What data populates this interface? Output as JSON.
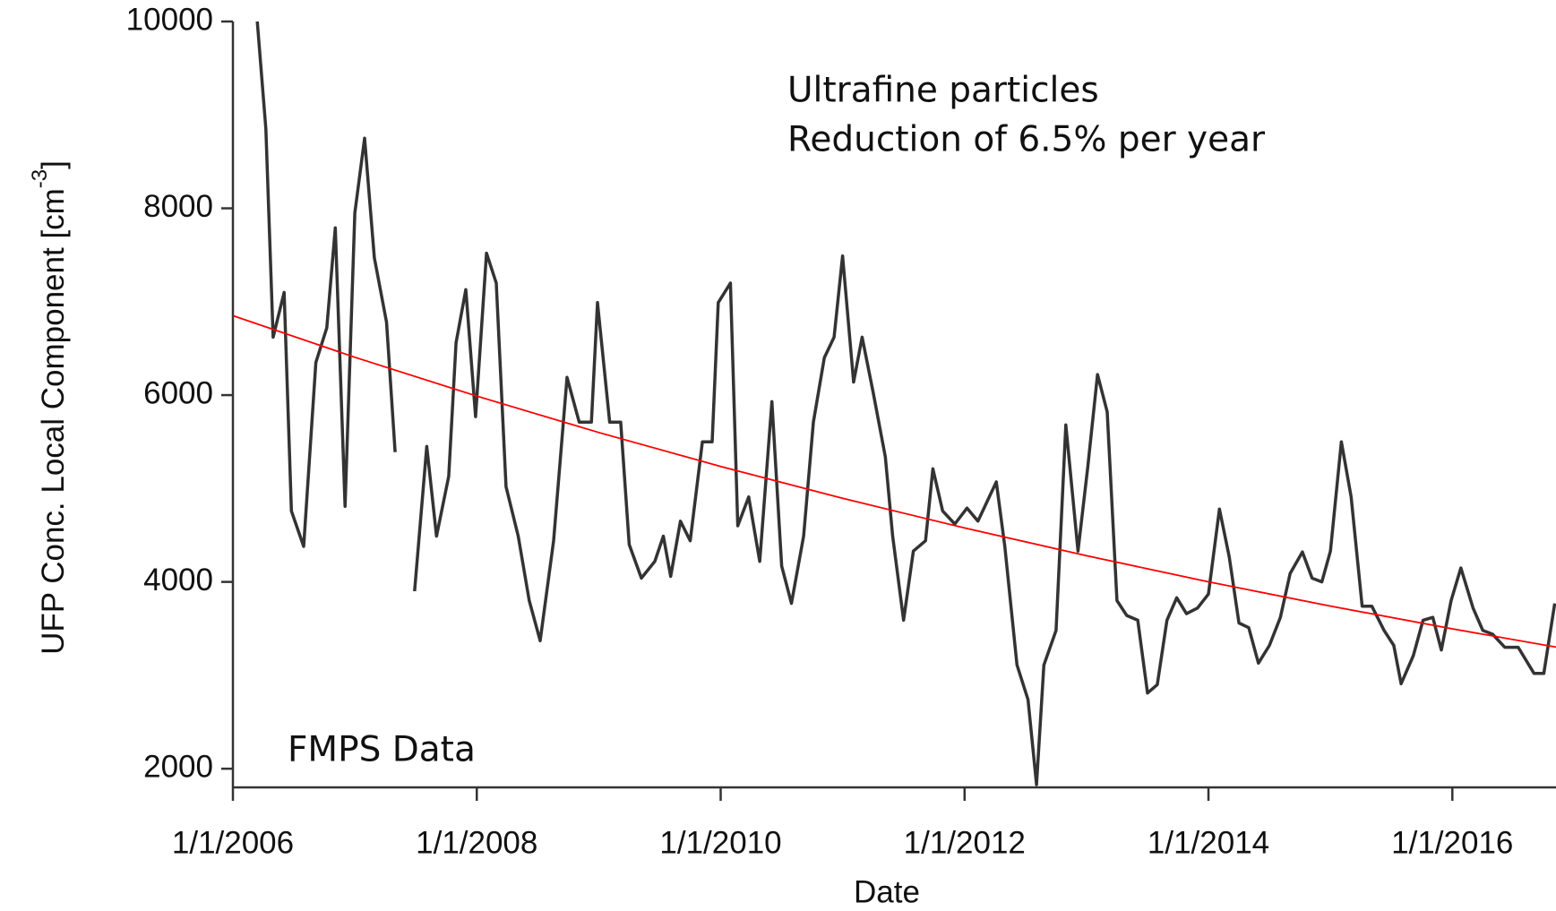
{
  "chart_data": {
    "type": "line",
    "annotations": [
      "Ultrafine particles",
      "Reduction of 6.5% per year",
      "FMPS Data"
    ],
    "x_label": "Date",
    "y_label": "UFP Conc. Local Component [cm",
    "y_label_superscript": "-3",
    "y_label_end": "]",
    "xlim": [
      2006,
      2016.85
    ],
    "xticks": [
      {
        "value": 2006,
        "label": "1/1/2006"
      },
      {
        "value": 2008,
        "label": "1/1/2008"
      },
      {
        "value": 2010,
        "label": "1/1/2010"
      },
      {
        "value": 2012,
        "label": "1/1/2012"
      },
      {
        "value": 2014,
        "label": "1/1/2014"
      },
      {
        "value": 2016,
        "label": "1/1/2016"
      }
    ],
    "ylim": [
      1800,
      10000
    ],
    "yticks": [
      2000,
      4000,
      6000,
      8000,
      10000
    ],
    "series": [
      {
        "color": "#333333",
        "x": [
          2006.2,
          2006.27,
          2006.33,
          2006.42,
          2006.48,
          2006.58,
          2006.68,
          2006.77,
          2006.84,
          2006.92,
          2007.0,
          2007.08,
          2007.16,
          2007.26,
          2007.33,
          2007.41,
          2007.49,
          2007.59,
          2007.67,
          2007.77,
          2007.83,
          2007.91,
          2007.99,
          2008.08,
          2008.16,
          2008.24,
          2008.34,
          2008.43,
          2008.52,
          2008.63,
          2008.74,
          2008.84,
          2008.94,
          2008.99,
          2009.09,
          2009.18,
          2009.25,
          2009.35,
          2009.46,
          2009.53,
          2009.59,
          2009.67,
          2009.75,
          2009.85,
          2009.93,
          2009.98,
          2010.08,
          2010.14,
          2010.23,
          2010.32,
          2010.42,
          2010.5,
          2010.58,
          2010.68,
          2010.76,
          2010.85,
          2010.93,
          2011.0,
          2011.09,
          2011.16,
          2011.25,
          2011.35,
          2011.41,
          2011.5,
          2011.58,
          2011.68,
          2011.74,
          2011.82,
          2011.92,
          2012.02,
          2012.11,
          2012.26,
          2012.33,
          2012.43,
          2012.52,
          2012.59,
          2012.65,
          2012.75,
          2012.83,
          2012.93,
          2013.01,
          2013.09,
          2013.17,
          2013.25,
          2013.33,
          2013.42,
          2013.5,
          2013.58,
          2013.66,
          2013.74,
          2013.82,
          2013.91,
          2014.0,
          2014.09,
          2014.17,
          2014.25,
          2014.33,
          2014.41,
          2014.5,
          2014.59,
          2014.67,
          2014.77,
          2014.85,
          2014.93,
          2015.0,
          2015.09,
          2015.17,
          2015.26,
          2015.34,
          2015.44,
          2015.52,
          2015.58,
          2015.68,
          2015.76,
          2015.84,
          2015.91,
          2015.99,
          2016.07,
          2016.17,
          2016.25,
          2016.33,
          2016.43,
          2016.54,
          2016.67,
          2016.75,
          2016.84
        ],
        "values": [
          10000,
          8850,
          6620,
          7100,
          4760,
          4380,
          6350,
          6720,
          7790,
          4810,
          7950,
          8750,
          7470,
          6780,
          5390,
          null,
          3900,
          5450,
          4490,
          5130,
          6560,
          7130,
          5770,
          7520,
          7200,
          5020,
          4490,
          3800,
          3370,
          4440,
          6190,
          5710,
          5710,
          6990,
          5710,
          5710,
          4400,
          4040,
          4220,
          4490,
          4060,
          4650,
          4440,
          5500,
          5500,
          6990,
          7200,
          4600,
          4910,
          4220,
          5930,
          4170,
          3770,
          4490,
          5710,
          6400,
          6620,
          7490,
          6140,
          6620,
          6030,
          5340,
          4490,
          3590,
          4330,
          4440,
          5210,
          4760,
          4620,
          4790,
          4650,
          5070,
          4380,
          3110,
          2740,
          1830,
          3110,
          3480,
          5680,
          4330,
          5230,
          6220,
          5820,
          3800,
          3640,
          3590,
          2810,
          2900,
          3590,
          3830,
          3660,
          3720,
          3870,
          4780,
          4270,
          3560,
          3510,
          3130,
          3320,
          3620,
          4090,
          4320,
          4040,
          4000,
          4330,
          5500,
          4910,
          3740,
          3740,
          3480,
          3320,
          2910,
          3210,
          3590,
          3620,
          3270,
          3800,
          4150,
          3720,
          3480,
          3440,
          3300,
          3300,
          3020,
          3020,
          3770
        ]
      },
      {
        "color": "#ff0000",
        "x": [
          2006,
          2007,
          2008,
          2009,
          2010,
          2011,
          2012,
          2013,
          2014,
          2015,
          2016,
          2016.85
        ],
        "values": [
          6850,
          6405,
          5989,
          5600,
          5236,
          4895,
          4577,
          4280,
          4001,
          3741,
          3498,
          3302
        ]
      }
    ]
  }
}
